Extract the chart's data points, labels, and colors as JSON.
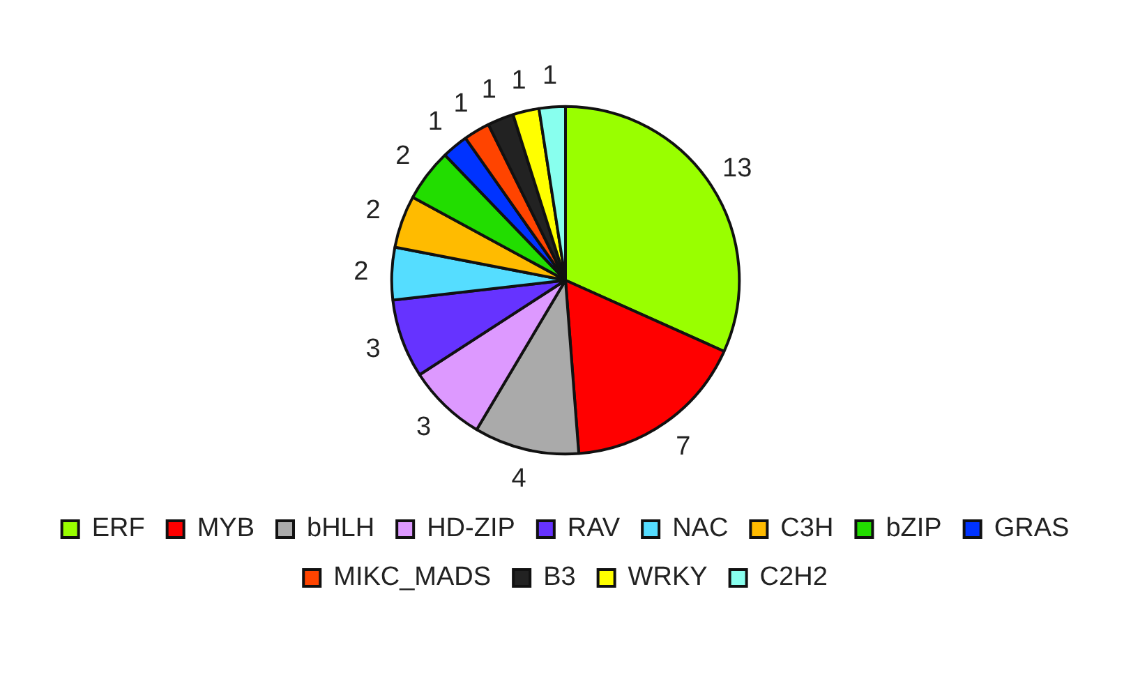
{
  "chart_data": {
    "type": "pie",
    "categories": [
      "ERF",
      "MYB",
      "bHLH",
      "HD-ZIP",
      "RAV",
      "NAC",
      "C3H",
      "bZIP",
      "GRAS",
      "MIKC_MADS",
      "B3",
      "WRKY",
      "C2H2"
    ],
    "values": [
      13,
      7,
      4,
      3,
      3,
      2,
      2,
      2,
      1,
      1,
      1,
      1,
      1
    ],
    "colors": [
      "#99ff00",
      "#ff0000",
      "#aaaaaa",
      "#dd99ff",
      "#6633ff",
      "#55ddff",
      "#ffbb00",
      "#22dd00",
      "#0033ff",
      "#ff4400",
      "#222222",
      "#ffff00",
      "#88ffee"
    ],
    "data_labels": true,
    "legend": "bottom"
  }
}
